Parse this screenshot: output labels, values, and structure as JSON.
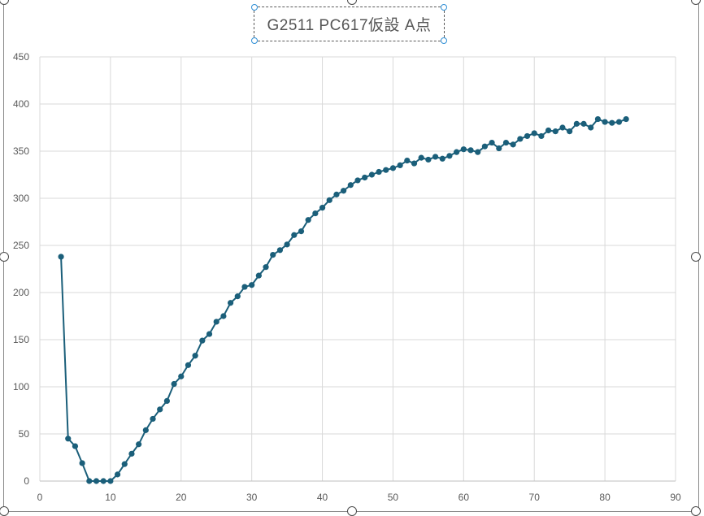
{
  "chart_data": {
    "type": "line",
    "title": "G2511 PC617仮設 A点",
    "xlabel": "",
    "ylabel": "",
    "xlim": [
      0,
      90
    ],
    "ylim": [
      0,
      450
    ],
    "x_ticks": [
      0,
      10,
      20,
      30,
      40,
      50,
      60,
      70,
      80,
      90
    ],
    "y_ticks": [
      0,
      50,
      100,
      150,
      200,
      250,
      300,
      350,
      400,
      450
    ],
    "grid": true,
    "legend": "none",
    "series": [
      {
        "color": "#1b5f7a",
        "marker": "circle",
        "x": [
          3,
          4,
          5,
          6,
          7,
          8,
          9,
          10,
          11,
          12,
          13,
          14,
          15,
          16,
          17,
          18,
          19,
          20,
          21,
          22,
          23,
          24,
          25,
          26,
          27,
          28,
          29,
          30,
          31,
          32,
          33,
          34,
          35,
          36,
          37,
          38,
          39,
          40,
          41,
          42,
          43,
          44,
          45,
          46,
          47,
          48,
          49,
          50,
          51,
          52,
          53,
          54,
          55,
          56,
          57,
          58,
          59,
          60,
          61,
          62,
          63,
          64,
          65,
          66,
          67,
          68,
          69,
          70,
          71,
          72,
          73,
          74,
          75,
          76,
          77,
          78,
          79,
          80,
          81,
          82,
          83
        ],
        "y": [
          238,
          45,
          37,
          19,
          0,
          0,
          0,
          0,
          7,
          18,
          29,
          39,
          54,
          66,
          76,
          85,
          103,
          111,
          123,
          133,
          149,
          156,
          169,
          175,
          189,
          196,
          206,
          208,
          218,
          227,
          240,
          245,
          251,
          261,
          265,
          277,
          284,
          290,
          298,
          304,
          308,
          314,
          319,
          322,
          325,
          328,
          330,
          332,
          335,
          340,
          337,
          343,
          341,
          344,
          342,
          345,
          349,
          352,
          351,
          349,
          355,
          359,
          353,
          359,
          357,
          363,
          366,
          369,
          366,
          372,
          371,
          375,
          371,
          379,
          379,
          375,
          384,
          381,
          380,
          381,
          384
        ]
      }
    ]
  }
}
